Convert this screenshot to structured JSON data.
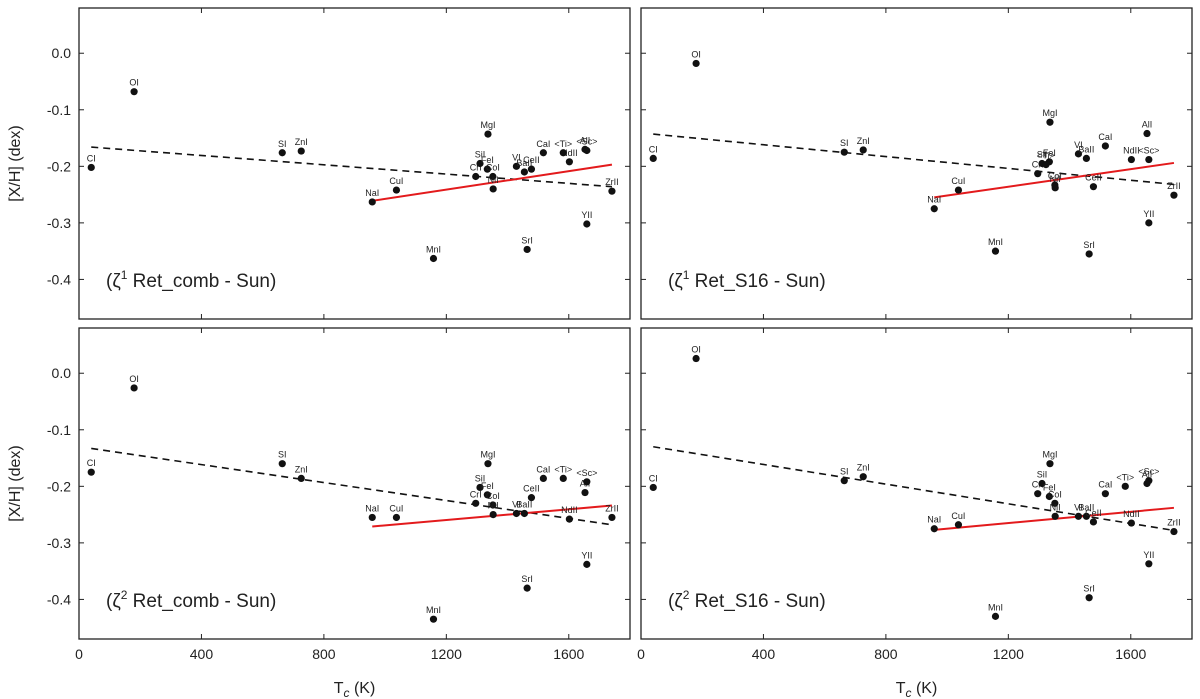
{
  "chart_data": {
    "type": "scatter",
    "xlabel": "T_c (K)",
    "ylabel": "[X/H] (dex)",
    "xlim": [
      0,
      1800
    ],
    "ylim": [
      -0.47,
      0.08
    ],
    "xticks": [
      "0",
      "400",
      "800",
      "1200",
      "1600"
    ],
    "yticks": [
      "0.0",
      "-0.1",
      "-0.2",
      "-0.3",
      "-0.4"
    ],
    "panels": [
      {
        "annotation_parts": [
          "(ζ",
          "1",
          " Ret_comb - Sun)"
        ],
        "points": [
          {
            "label": "CI",
            "x": 40,
            "y": -0.202
          },
          {
            "label": "OI",
            "x": 180,
            "y": -0.068
          },
          {
            "label": "SI",
            "x": 664,
            "y": -0.176
          },
          {
            "label": "ZnI",
            "x": 726,
            "y": -0.173
          },
          {
            "label": "NaI",
            "x": 958,
            "y": -0.263
          },
          {
            "label": "CuI",
            "x": 1037,
            "y": -0.242
          },
          {
            "label": "MnI",
            "x": 1158,
            "y": -0.363
          },
          {
            "label": "CrI",
            "x": 1296,
            "y": -0.218
          },
          {
            "label": "SiI",
            "x": 1310,
            "y": -0.195
          },
          {
            "label": "MgI",
            "x": 1336,
            "y": -0.143
          },
          {
            "label": "FeI",
            "x": 1334,
            "y": -0.205
          },
          {
            "label": "CoI",
            "x": 1352,
            "y": -0.218
          },
          {
            "label": "NiI",
            "x": 1353,
            "y": -0.24
          },
          {
            "label": "VI",
            "x": 1429,
            "y": -0.2
          },
          {
            "label": "BaII",
            "x": 1455,
            "y": -0.21
          },
          {
            "label": "SrI",
            "x": 1464,
            "y": -0.347
          },
          {
            "label": "CeII",
            "x": 1478,
            "y": -0.205
          },
          {
            "label": "CaI",
            "x": 1517,
            "y": -0.176
          },
          {
            "label": "NdII",
            "x": 1602,
            "y": -0.192
          },
          {
            "label": "<Ti>",
            "x": 1582,
            "y": -0.176
          },
          {
            "label": "AlI",
            "x": 1653,
            "y": -0.17
          },
          {
            "label": "<Sc>",
            "x": 1659,
            "y": -0.172
          },
          {
            "label": "YII",
            "x": 1659,
            "y": -0.302
          },
          {
            "label": "ZrII",
            "x": 1741,
            "y": -0.244
          }
        ],
        "dashed_fit": [
          [
            40,
            -0.166
          ],
          [
            1741,
            -0.236
          ]
        ],
        "red_fit": [
          [
            958,
            -0.261
          ],
          [
            1741,
            -0.197
          ]
        ]
      },
      {
        "annotation_parts": [
          "(ζ",
          "1",
          " Ret_S16 - Sun)"
        ],
        "points": [
          {
            "label": "CI",
            "x": 40,
            "y": -0.186
          },
          {
            "label": "OI",
            "x": 180,
            "y": -0.018
          },
          {
            "label": "SI",
            "x": 664,
            "y": -0.175
          },
          {
            "label": "ZnI",
            "x": 726,
            "y": -0.171
          },
          {
            "label": "NaI",
            "x": 958,
            "y": -0.275
          },
          {
            "label": "CuI",
            "x": 1037,
            "y": -0.242
          },
          {
            "label": "MnI",
            "x": 1158,
            "y": -0.35
          },
          {
            "label": "CrI",
            "x": 1296,
            "y": -0.213
          },
          {
            "label": "SiI",
            "x": 1310,
            "y": -0.195
          },
          {
            "label": "MgI",
            "x": 1336,
            "y": -0.122
          },
          {
            "label": "FeI",
            "x": 1334,
            "y": -0.192
          },
          {
            "label": "<Ti>",
            "x": 1323,
            "y": -0.197
          },
          {
            "label": "CoI",
            "x": 1352,
            "y": -0.233
          },
          {
            "label": "NiI",
            "x": 1353,
            "y": -0.238
          },
          {
            "label": "VI",
            "x": 1429,
            "y": -0.178
          },
          {
            "label": "BaII",
            "x": 1455,
            "y": -0.186
          },
          {
            "label": "SrI",
            "x": 1464,
            "y": -0.355
          },
          {
            "label": "CeII",
            "x": 1478,
            "y": -0.236
          },
          {
            "label": "CaI",
            "x": 1517,
            "y": -0.164
          },
          {
            "label": "AlI",
            "x": 1653,
            "y": -0.142
          },
          {
            "label": "NdII",
            "x": 1602,
            "y": -0.188
          },
          {
            "label": "<Sc>",
            "x": 1659,
            "y": -0.188
          },
          {
            "label": "YII",
            "x": 1659,
            "y": -0.3
          },
          {
            "label": "ZrII",
            "x": 1741,
            "y": -0.251
          }
        ],
        "dashed_fit": [
          [
            40,
            -0.143
          ],
          [
            1741,
            -0.232
          ]
        ],
        "red_fit": [
          [
            958,
            -0.255
          ],
          [
            1741,
            -0.194
          ]
        ]
      },
      {
        "annotation_parts": [
          "(ζ",
          "2",
          " Ret_comb - Sun)"
        ],
        "points": [
          {
            "label": "CI",
            "x": 40,
            "y": -0.175
          },
          {
            "label": "OI",
            "x": 180,
            "y": -0.026
          },
          {
            "label": "SI",
            "x": 664,
            "y": -0.16
          },
          {
            "label": "ZnI",
            "x": 726,
            "y": -0.186
          },
          {
            "label": "NaI",
            "x": 958,
            "y": -0.255
          },
          {
            "label": "CuI",
            "x": 1037,
            "y": -0.255
          },
          {
            "label": "MnI",
            "x": 1158,
            "y": -0.435
          },
          {
            "label": "SiI",
            "x": 1310,
            "y": -0.202
          },
          {
            "label": "MgI",
            "x": 1336,
            "y": -0.16
          },
          {
            "label": "FeI",
            "x": 1334,
            "y": -0.215
          },
          {
            "label": "CrI",
            "x": 1296,
            "y": -0.23
          },
          {
            "label": "CoI",
            "x": 1352,
            "y": -0.233
          },
          {
            "label": "NiI",
            "x": 1353,
            "y": -0.25
          },
          {
            "label": "VI",
            "x": 1429,
            "y": -0.248
          },
          {
            "label": "BaII",
            "x": 1455,
            "y": -0.248
          },
          {
            "label": "SrI",
            "x": 1464,
            "y": -0.38
          },
          {
            "label": "CeII",
            "x": 1478,
            "y": -0.22
          },
          {
            "label": "CaI",
            "x": 1517,
            "y": -0.186
          },
          {
            "label": "NdII",
            "x": 1602,
            "y": -0.258
          },
          {
            "label": "<Ti>",
            "x": 1582,
            "y": -0.186
          },
          {
            "label": "AlI",
            "x": 1653,
            "y": -0.211
          },
          {
            "label": "<Sc>",
            "x": 1659,
            "y": -0.192
          },
          {
            "label": "YII",
            "x": 1659,
            "y": -0.338
          },
          {
            "label": "ZrII",
            "x": 1741,
            "y": -0.255
          }
        ],
        "dashed_fit": [
          [
            40,
            -0.133
          ],
          [
            1741,
            -0.268
          ]
        ],
        "red_fit": [
          [
            958,
            -0.271
          ],
          [
            1741,
            -0.234
          ]
        ]
      },
      {
        "annotation_parts": [
          "(ζ",
          "2",
          " Ret_S16 - Sun)"
        ],
        "points": [
          {
            "label": "CI",
            "x": 40,
            "y": -0.202
          },
          {
            "label": "OI",
            "x": 180,
            "y": 0.026
          },
          {
            "label": "SI",
            "x": 664,
            "y": -0.19
          },
          {
            "label": "ZnI",
            "x": 726,
            "y": -0.183
          },
          {
            "label": "NaI",
            "x": 958,
            "y": -0.275
          },
          {
            "label": "CuI",
            "x": 1037,
            "y": -0.268
          },
          {
            "label": "MnI",
            "x": 1158,
            "y": -0.43
          },
          {
            "label": "CrI",
            "x": 1296,
            "y": -0.213
          },
          {
            "label": "SiI",
            "x": 1310,
            "y": -0.195
          },
          {
            "label": "MgI",
            "x": 1336,
            "y": -0.16
          },
          {
            "label": "FeI",
            "x": 1334,
            "y": -0.218
          },
          {
            "label": "CoI",
            "x": 1352,
            "y": -0.23
          },
          {
            "label": "NiI",
            "x": 1353,
            "y": -0.253
          },
          {
            "label": "VI",
            "x": 1429,
            "y": -0.253
          },
          {
            "label": "BaII",
            "x": 1455,
            "y": -0.253
          },
          {
            "label": "SrI",
            "x": 1464,
            "y": -0.397
          },
          {
            "label": "CeII",
            "x": 1478,
            "y": -0.263
          },
          {
            "label": "CaI",
            "x": 1517,
            "y": -0.213
          },
          {
            "label": "<Ti>",
            "x": 1582,
            "y": -0.2
          },
          {
            "label": "NdII",
            "x": 1602,
            "y": -0.265
          },
          {
            "label": "AlI",
            "x": 1653,
            "y": -0.195
          },
          {
            "label": "<Sc>",
            "x": 1659,
            "y": -0.19
          },
          {
            "label": "YII",
            "x": 1659,
            "y": -0.337
          },
          {
            "label": "ZrII",
            "x": 1741,
            "y": -0.28
          }
        ],
        "dashed_fit": [
          [
            40,
            -0.13
          ],
          [
            1741,
            -0.278
          ]
        ],
        "red_fit": [
          [
            958,
            -0.277
          ],
          [
            1741,
            -0.238
          ]
        ]
      }
    ],
    "colors": {
      "points": "#111111",
      "dashed_fit": "#111111",
      "red_fit": "#e31a1c"
    }
  }
}
